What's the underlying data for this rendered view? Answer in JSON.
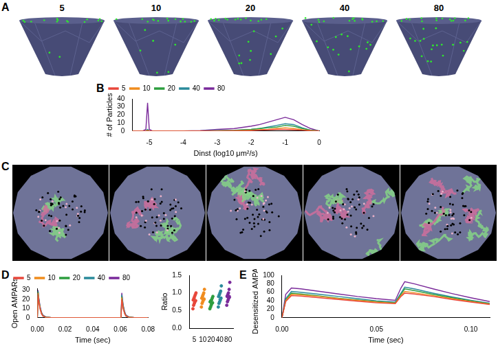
{
  "panel_labels": [
    "A",
    "B",
    "C",
    "D",
    "E"
  ],
  "panel_a": {
    "titles": [
      "5",
      "10",
      "20",
      "40",
      "80"
    ]
  },
  "chart_data": [
    {
      "type": "line",
      "panel": "B",
      "x_label": "Dinst (log10 μm²/s)",
      "y_label": "# of Particles",
      "x": [
        -5.5,
        -5.2,
        -5.1,
        -5.05,
        -5.0,
        -4.9,
        -4.5,
        -4,
        -3.5,
        -3,
        -2.5,
        -2,
        -1.75,
        -1.5,
        -1.25,
        -1,
        -0.75,
        -0.5,
        -0.25,
        0
      ],
      "series": [
        {
          "name": "5",
          "color": "#e8473b",
          "values": [
            0,
            0,
            0,
            0,
            0,
            0,
            0,
            0,
            0,
            0,
            0.2,
            0.5,
            1,
            1.5,
            2,
            2,
            1.5,
            1,
            0.3,
            0
          ]
        },
        {
          "name": "10",
          "color": "#f08c1e",
          "values": [
            0,
            0,
            0,
            0.5,
            0,
            0,
            0,
            0,
            0,
            0,
            0.3,
            1,
            1.5,
            2,
            3,
            4,
            3,
            1.5,
            0.5,
            0
          ]
        },
        {
          "name": "20",
          "color": "#2e9e3f",
          "values": [
            0,
            0,
            0,
            1,
            0,
            0,
            0,
            0,
            0,
            0.3,
            0.8,
            2,
            3,
            4,
            5,
            7,
            6,
            3,
            1,
            0
          ]
        },
        {
          "name": "40",
          "color": "#2a8a9a",
          "values": [
            0,
            0,
            0,
            2,
            0,
            0,
            0,
            0,
            0,
            0.5,
            1,
            2,
            3,
            5,
            7,
            9,
            8,
            4,
            1,
            0
          ]
        },
        {
          "name": "80",
          "color": "#7a2a9a",
          "values": [
            0,
            0,
            2,
            35,
            2,
            0,
            0,
            0,
            0.5,
            2,
            3,
            6,
            8,
            11,
            14,
            17,
            14,
            8,
            3,
            0
          ]
        }
      ],
      "xlim": [
        -5.5,
        0
      ],
      "xticks": [
        -5,
        -4,
        -3,
        -2,
        -1,
        0
      ],
      "ylim": [
        0,
        40
      ],
      "yticks": [
        0,
        10,
        20,
        30,
        40
      ],
      "grid": false,
      "legend": "top"
    },
    {
      "type": "line",
      "panel": "D",
      "x_label": "Time (sec)",
      "y_label": "Open AMPARs",
      "x": [
        0,
        0.0005,
        0.001,
        0.002,
        0.003,
        0.004,
        0.006,
        0.01,
        0.02,
        0.04,
        0.06,
        0.0605,
        0.061,
        0.062,
        0.063,
        0.064,
        0.066,
        0.07,
        0.08
      ],
      "series": [
        {
          "name": "5",
          "color": "#e8473b",
          "values": [
            0,
            25,
            18,
            9,
            4,
            1.8,
            0.5,
            0,
            0,
            0,
            0,
            0,
            20,
            10,
            4.5,
            1.8,
            0.5,
            0,
            0
          ]
        },
        {
          "name": "10",
          "color": "#f08c1e",
          "values": [
            0,
            27,
            19,
            10,
            4.5,
            2,
            0.5,
            0,
            0,
            0,
            0,
            0,
            22,
            11,
            5,
            2,
            0.5,
            0,
            0
          ]
        },
        {
          "name": "20",
          "color": "#2e9e3f",
          "values": [
            0,
            28,
            20,
            10,
            5,
            2,
            0.6,
            0,
            0,
            0,
            0,
            0,
            23,
            12,
            5,
            2,
            0.6,
            0,
            0
          ]
        },
        {
          "name": "40",
          "color": "#2a8a9a",
          "values": [
            0,
            29,
            21,
            11,
            5,
            2.5,
            0.8,
            0,
            0,
            0,
            0,
            0,
            25,
            13,
            6,
            2.5,
            0.8,
            0,
            0
          ]
        },
        {
          "name": "80",
          "color": "#7a2a9a",
          "values": [
            0,
            30,
            22,
            12,
            6,
            3,
            1,
            0,
            0,
            0,
            0,
            0,
            27,
            14,
            7,
            3,
            1,
            0,
            0
          ]
        }
      ],
      "xlim": [
        0,
        0.08
      ],
      "xticks": [
        {
          "value": 0,
          "label": "0.00"
        },
        {
          "value": 0.02,
          "label": "0.02"
        },
        {
          "value": 0.04,
          "label": "0.04"
        },
        {
          "value": 0.06,
          "label": "0.06"
        },
        {
          "value": 0.08,
          "label": "0.08"
        }
      ],
      "ylim": [
        0,
        32
      ],
      "yticks": [
        0,
        10,
        20,
        30
      ],
      "grid": false,
      "legend": "top"
    },
    {
      "type": "scatter",
      "panel": "D",
      "y_label": "Ratio",
      "categories": [
        "5",
        "10",
        "20",
        "40",
        "80"
      ],
      "colors": [
        "#e8473b",
        "#f08c1e",
        "#2e9e3f",
        "#2a8a9a",
        "#7a2a9a"
      ],
      "values": [
        [
          0.55,
          0.65,
          0.7,
          0.75,
          0.78,
          0.8,
          0.85,
          0.9,
          0.95,
          1.0
        ],
        [
          0.6,
          0.7,
          0.75,
          0.8,
          0.82,
          0.85,
          0.9,
          0.95,
          1.0,
          1.1
        ],
        [
          0.55,
          0.6,
          0.65,
          0.7,
          0.72,
          0.75,
          0.78,
          0.8,
          0.85,
          0.9
        ],
        [
          0.6,
          0.7,
          0.75,
          0.8,
          0.85,
          0.9,
          0.95,
          1.0,
          1.05,
          1.2
        ],
        [
          0.65,
          0.75,
          0.8,
          0.85,
          0.88,
          0.9,
          0.95,
          1.0,
          1.1,
          1.3
        ]
      ],
      "means": [
        0.79,
        0.85,
        0.73,
        0.88,
        0.92
      ],
      "errors": [
        0.05,
        0.05,
        0.035,
        0.06,
        0.06
      ],
      "ylim": [
        0,
        1.5
      ],
      "yticks": [
        {
          "value": 0,
          "label": "0.0"
        },
        0.5,
        {
          "value": 1,
          "label": "1.0"
        },
        1.5
      ],
      "marker": "circle",
      "grid": false
    },
    {
      "type": "line",
      "panel": "E",
      "x_label": "Time (sec)",
      "y_label": "Desensitized AMPARs",
      "x": [
        0,
        0.002,
        0.005,
        0.01,
        0.02,
        0.03,
        0.04,
        0.05,
        0.06,
        0.063,
        0.065,
        0.07,
        0.08,
        0.09,
        0.1,
        0.11
      ],
      "series": [
        {
          "name": "5",
          "color": "#e8473b",
          "values": [
            0,
            38,
            52,
            51,
            47,
            43,
            39,
            35,
            33,
            50,
            58,
            56,
            50,
            43,
            37,
            31
          ]
        },
        {
          "name": "10",
          "color": "#f08c1e",
          "values": [
            0,
            40,
            55,
            54,
            50,
            45,
            41,
            37,
            34,
            52,
            62,
            59,
            52,
            45,
            38,
            32
          ]
        },
        {
          "name": "20",
          "color": "#2e9e3f",
          "values": [
            0,
            42,
            58,
            56,
            51,
            46,
            42,
            38,
            35,
            55,
            68,
            64,
            55,
            47,
            40,
            33
          ]
        },
        {
          "name": "40",
          "color": "#2a8a9a",
          "values": [
            0,
            45,
            62,
            60,
            55,
            50,
            45,
            40,
            37,
            58,
            72,
            68,
            58,
            49,
            41,
            34
          ]
        },
        {
          "name": "80",
          "color": "#7a2a9a",
          "values": [
            0,
            55,
            70,
            68,
            62,
            56,
            50,
            45,
            41,
            70,
            85,
            80,
            68,
            57,
            47,
            38
          ]
        }
      ],
      "xlim": [
        0,
        0.11
      ],
      "xticks": [
        {
          "value": 0,
          "label": "0.00"
        },
        {
          "value": 0.05,
          "label": "0.05"
        },
        {
          "value": 0.1,
          "label": "0.10"
        }
      ],
      "ylim": [
        0,
        100
      ],
      "yticks": [
        0,
        20,
        40,
        60,
        80,
        100
      ],
      "grid": false
    }
  ]
}
